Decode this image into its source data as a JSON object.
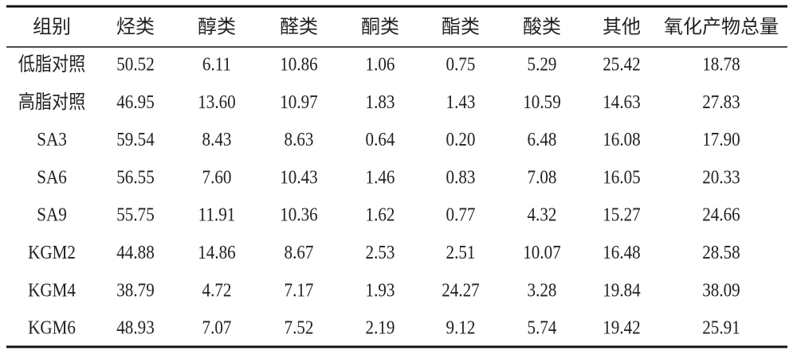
{
  "table": {
    "header": [
      "组别",
      "烃类",
      "醇类",
      "醛类",
      "酮类",
      "酯类",
      "酸类",
      "其他",
      "氧化产物总量"
    ],
    "rows": [
      [
        "低脂对照",
        "50.52",
        "6.11",
        "10.86",
        "1.06",
        "0.75",
        "5.29",
        "25.42",
        "18.78"
      ],
      [
        "高脂对照",
        "46.95",
        "13.60",
        "10.97",
        "1.83",
        "1.43",
        "10.59",
        "14.63",
        "27.83"
      ],
      [
        "SA3",
        "59.54",
        "8.43",
        "8.63",
        "0.64",
        "0.20",
        "6.48",
        "16.08",
        "17.90"
      ],
      [
        "SA6",
        "56.55",
        "7.60",
        "10.43",
        "1.46",
        "0.83",
        "7.08",
        "16.05",
        "20.33"
      ],
      [
        "SA9",
        "55.75",
        "11.91",
        "10.36",
        "1.62",
        "0.77",
        "4.32",
        "15.27",
        "24.66"
      ],
      [
        "KGM2",
        "44.88",
        "14.86",
        "8.67",
        "2.53",
        "2.51",
        "10.07",
        "16.48",
        "28.58"
      ],
      [
        "KGM4",
        "38.79",
        "4.72",
        "7.17",
        "1.93",
        "24.27",
        "3.28",
        "19.84",
        "38.09"
      ],
      [
        "KGM6",
        "48.93",
        "7.07",
        "7.52",
        "2.19",
        "9.12",
        "5.74",
        "19.42",
        "25.91"
      ]
    ]
  }
}
